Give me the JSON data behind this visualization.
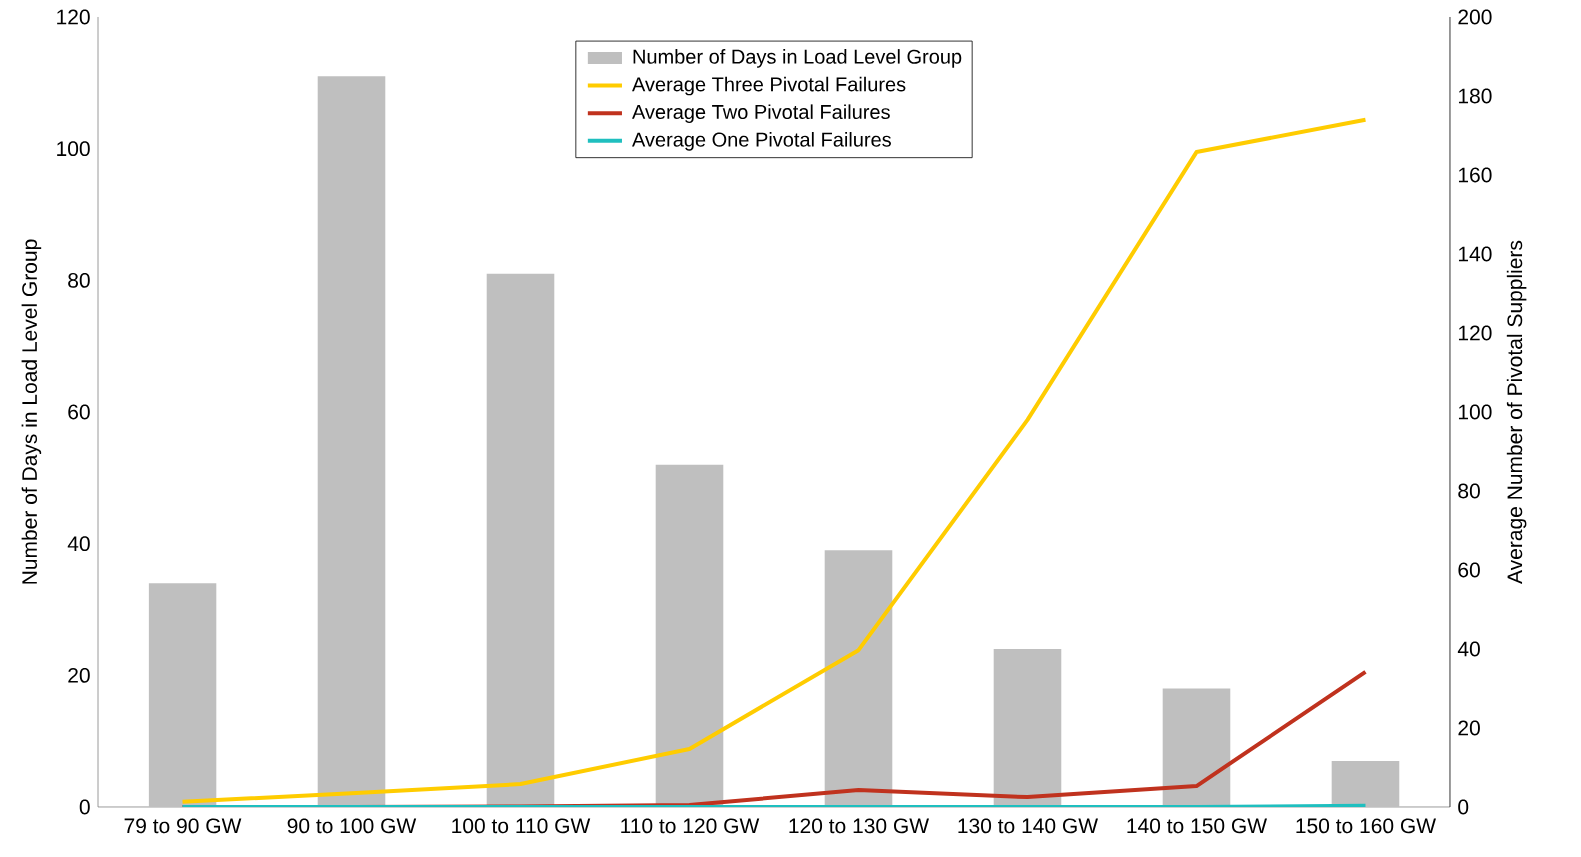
{
  "chart_data": {
    "type": "bar",
    "categories": [
      "79 to 90 GW",
      "90 to 100 GW",
      "100 to 110 GW",
      "110 to 120 GW",
      "120 to 130 GW",
      "130 to 140 GW",
      "140 to 150 GW",
      "150 to 160 GW"
    ],
    "ylabel": "Number of Days in Load Level Group",
    "y2label": "Average Number of Pivotal Suppliers",
    "ylim": [
      0,
      120
    ],
    "yticks": [
      0,
      20,
      40,
      60,
      80,
      100,
      120
    ],
    "y2lim": [
      0,
      200
    ],
    "y2ticks": [
      0,
      20,
      40,
      60,
      80,
      100,
      120,
      140,
      160,
      180,
      200
    ],
    "legend": "top",
    "grid": false,
    "series": [
      {
        "name": "Number of Days in Load Level Group",
        "color": "#bfbfbf",
        "values": [
          34,
          111,
          81,
          52,
          39,
          24,
          18,
          7
        ]
      },
      {
        "name": "Average Three Pivotal Failures",
        "type": "line",
        "axis": "y2",
        "color": "#ffcc00",
        "values": [
          1.3,
          3.5,
          5.8,
          14.7,
          39.7,
          98,
          165.8,
          174
        ]
      },
      {
        "name": "Average Two Pivotal Failures",
        "type": "line",
        "axis": "y2",
        "color": "#c0321e",
        "values": [
          0,
          0,
          0.1,
          0.5,
          4.3,
          2.5,
          5.3,
          34.2
        ]
      },
      {
        "name": "Average One Pivotal Failures",
        "type": "line",
        "axis": "y2",
        "color": "#1fbfbf",
        "values": [
          0,
          0,
          0,
          0,
          0,
          0,
          0,
          0.3
        ]
      }
    ]
  }
}
